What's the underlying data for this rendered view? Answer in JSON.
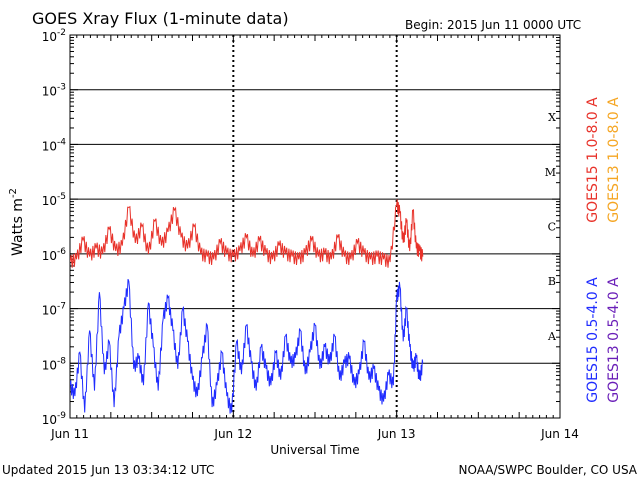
{
  "header": {
    "title": "GOES Xray Flux (1-minute data)",
    "begin": "Begin:  2015 Jun 11 0000 UTC"
  },
  "footer": {
    "updated": "Updated 2015 Jun 13 03:34:12 UTC",
    "credit": "NOAA/SWPC Boulder, CO USA"
  },
  "chart_data": {
    "type": "line",
    "title": "GOES Xray Flux (1-minute data)",
    "xlabel": "Universal Time",
    "ylabel": "Watts m",
    "ylabel_superscript": "-2",
    "x_unit": "days since 2015 Jun 11 0000 UTC",
    "xlim": [
      0,
      3
    ],
    "ylim_log10": [
      -9,
      -2
    ],
    "y_scale": "log",
    "grid": true,
    "x_ticks": [
      {
        "label": "Jun 11",
        "value": 0
      },
      {
        "label": "Jun 12",
        "value": 1
      },
      {
        "label": "Jun 13",
        "value": 2
      },
      {
        "label": "Jun 14",
        "value": 3
      }
    ],
    "y_ticks": [
      {
        "mantissa": "10",
        "exponent": "-9",
        "value": -9
      },
      {
        "mantissa": "10",
        "exponent": "-8",
        "value": -8
      },
      {
        "mantissa": "10",
        "exponent": "-7",
        "value": -7
      },
      {
        "mantissa": "10",
        "exponent": "-6",
        "value": -6
      },
      {
        "mantissa": "10",
        "exponent": "-5",
        "value": -5
      },
      {
        "mantissa": "10",
        "exponent": "-4",
        "value": -4
      },
      {
        "mantissa": "10",
        "exponent": "-3",
        "value": -3
      },
      {
        "mantissa": "10",
        "exponent": "-2",
        "value": -2
      }
    ],
    "flare_classes": [
      {
        "label": "A",
        "value": -7.5
      },
      {
        "label": "B",
        "value": -6.5
      },
      {
        "label": "C",
        "value": -5.5
      },
      {
        "label": "M",
        "value": -4.5
      },
      {
        "label": "X",
        "value": -3.5
      }
    ],
    "legend": [
      {
        "name": "GOES15 1.0-8.0 A",
        "color": "#e8322a"
      },
      {
        "name": "GOES13 1.0-8.0 A",
        "color": "#f5a623"
      },
      {
        "name": "GOES15 0.5-4.0 A",
        "color": "#1f2cff"
      },
      {
        "name": "GOES13 0.5-4.0 A",
        "color": "#6a1fb8"
      }
    ],
    "series": [
      {
        "name": "GOES15 1.0-8.0 A",
        "color": "#e8322a",
        "x": [
          0.0,
          0.04,
          0.08,
          0.12,
          0.16,
          0.2,
          0.24,
          0.28,
          0.32,
          0.36,
          0.4,
          0.44,
          0.48,
          0.52,
          0.56,
          0.6,
          0.64,
          0.68,
          0.72,
          0.76,
          0.8,
          0.84,
          0.88,
          0.92,
          0.96,
          1.0,
          1.04,
          1.08,
          1.12,
          1.16,
          1.2,
          1.24,
          1.28,
          1.32,
          1.36,
          1.4,
          1.44,
          1.48,
          1.52,
          1.56,
          1.6,
          1.64,
          1.68,
          1.72,
          1.76,
          1.8,
          1.84,
          1.88,
          1.92,
          1.96,
          2.0,
          2.02,
          2.04,
          2.06,
          2.08,
          2.1,
          2.12,
          2.14,
          2.16
        ],
        "y_log10": [
          -6.15,
          -6.1,
          -5.75,
          -6.05,
          -5.9,
          -6.0,
          -5.55,
          -5.95,
          -5.85,
          -5.15,
          -5.8,
          -5.5,
          -6.0,
          -5.4,
          -5.85,
          -5.6,
          -5.2,
          -5.7,
          -5.9,
          -5.5,
          -6.0,
          -6.05,
          -6.1,
          -5.8,
          -6.0,
          -6.05,
          -5.95,
          -5.7,
          -6.05,
          -5.75,
          -6.0,
          -6.1,
          -5.85,
          -6.0,
          -6.05,
          -6.1,
          -6.0,
          -5.75,
          -6.05,
          -6.0,
          -6.1,
          -5.7,
          -6.05,
          -6.1,
          -5.8,
          -6.0,
          -6.1,
          -6.05,
          -6.1,
          -6.15,
          -5.1,
          -5.25,
          -5.8,
          -5.4,
          -5.95,
          -5.2,
          -5.9,
          -5.95,
          -6.05
        ]
      },
      {
        "name": "GOES15 0.5-4.0 A",
        "color": "#1f2cff",
        "x": [
          0.0,
          0.03,
          0.06,
          0.09,
          0.12,
          0.15,
          0.18,
          0.21,
          0.24,
          0.27,
          0.3,
          0.33,
          0.36,
          0.39,
          0.42,
          0.45,
          0.48,
          0.51,
          0.54,
          0.57,
          0.6,
          0.63,
          0.66,
          0.69,
          0.72,
          0.75,
          0.78,
          0.81,
          0.84,
          0.87,
          0.9,
          0.93,
          0.96,
          0.99,
          1.02,
          1.05,
          1.08,
          1.11,
          1.14,
          1.17,
          1.2,
          1.23,
          1.26,
          1.29,
          1.32,
          1.35,
          1.38,
          1.41,
          1.44,
          1.47,
          1.5,
          1.53,
          1.56,
          1.59,
          1.62,
          1.65,
          1.68,
          1.71,
          1.74,
          1.77,
          1.8,
          1.83,
          1.86,
          1.89,
          1.92,
          1.95,
          1.98,
          2.0,
          2.02,
          2.04,
          2.06,
          2.08,
          2.1,
          2.12,
          2.14,
          2.16
        ],
        "y_log10": [
          -8.4,
          -8.6,
          -7.8,
          -8.9,
          -7.4,
          -8.5,
          -6.7,
          -8.2,
          -7.6,
          -8.8,
          -7.5,
          -7.0,
          -6.5,
          -8.1,
          -7.9,
          -8.4,
          -6.9,
          -7.7,
          -8.5,
          -7.2,
          -6.8,
          -7.4,
          -8.1,
          -7.0,
          -7.6,
          -8.3,
          -8.6,
          -7.9,
          -7.3,
          -8.8,
          -8.4,
          -7.8,
          -8.6,
          -8.9,
          -7.6,
          -8.2,
          -7.3,
          -8.0,
          -8.5,
          -7.7,
          -8.1,
          -8.4,
          -7.8,
          -8.3,
          -7.5,
          -8.0,
          -7.9,
          -7.4,
          -8.2,
          -7.8,
          -7.3,
          -8.1,
          -7.7,
          -8.0,
          -7.5,
          -8.3,
          -8.0,
          -7.9,
          -8.4,
          -8.2,
          -7.6,
          -8.3,
          -8.1,
          -8.5,
          -8.7,
          -8.2,
          -8.4,
          -6.8,
          -6.6,
          -7.6,
          -7.0,
          -7.7,
          -8.1,
          -7.9,
          -8.3,
          -8.0
        ]
      }
    ]
  }
}
